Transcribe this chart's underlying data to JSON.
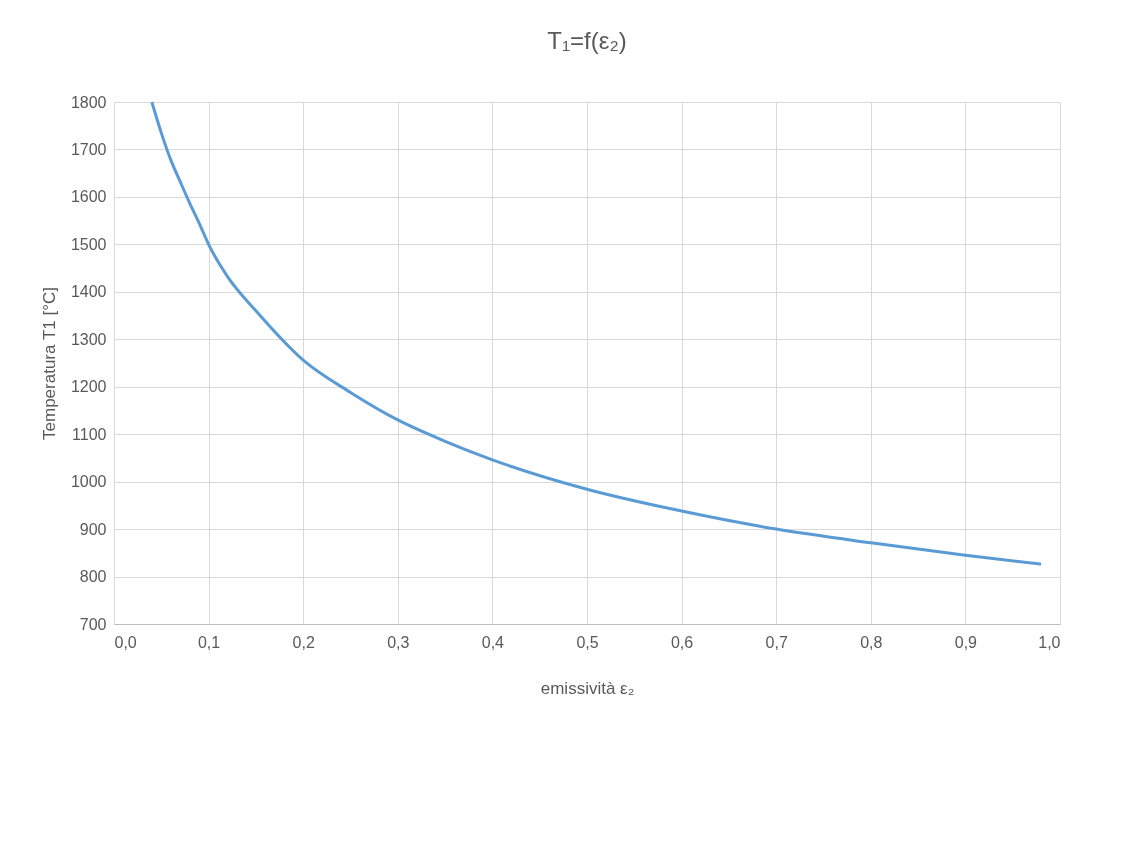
{
  "chart_data": {
    "type": "line",
    "title": "T₁=f(ε₂)",
    "xlabel": "emissività ε₂",
    "ylabel": "Temperatura T1 [°C]",
    "x": [
      0.04,
      0.05,
      0.06,
      0.07,
      0.08,
      0.09,
      0.1,
      0.12,
      0.15,
      0.2,
      0.25,
      0.3,
      0.35,
      0.4,
      0.5,
      0.6,
      0.7,
      0.8,
      0.9,
      0.98
    ],
    "series": [
      {
        "color": "#5b9bd5",
        "values": [
          1800,
          1735,
          1678,
          1632,
          1587,
          1545,
          1500,
          1432,
          1360,
          1256,
          1188,
          1130,
          1085,
          1046,
          984,
          938,
          900,
          871,
          845,
          826
        ]
      }
    ],
    "xlim": [
      0,
      1
    ],
    "ylim": [
      700,
      1800
    ],
    "xticks": [
      {
        "value": 0,
        "label": "0,0"
      },
      {
        "value": 0.1,
        "label": "0,1"
      },
      {
        "value": 0.2,
        "label": "0,2"
      },
      {
        "value": 0.3,
        "label": "0,3"
      },
      {
        "value": 0.4,
        "label": "0,4"
      },
      {
        "value": 0.5,
        "label": "0,5"
      },
      {
        "value": 0.6,
        "label": "0,6"
      },
      {
        "value": 0.7,
        "label": "0,7"
      },
      {
        "value": 0.8,
        "label": "0,8"
      },
      {
        "value": 0.9,
        "label": "0,9"
      },
      {
        "value": 1,
        "label": "1,0"
      }
    ],
    "yticks": [
      700,
      800,
      900,
      1000,
      1100,
      1200,
      1300,
      1400,
      1500,
      1600,
      1700,
      1800
    ],
    "grid": true,
    "marker": "none",
    "line_style": "solid"
  }
}
